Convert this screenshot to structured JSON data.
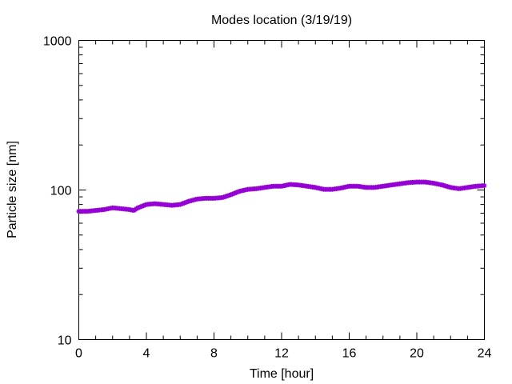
{
  "chart_data": {
    "type": "scatter",
    "title": "Modes location (3/19/19)",
    "xlabel": "Time [hour]",
    "ylabel": "Particle size [nm]",
    "xlim": [
      0,
      24
    ],
    "ylim": [
      10,
      1000
    ],
    "yscale": "log",
    "x_ticks": [
      "0",
      "4",
      "8",
      "12",
      "16",
      "20",
      "24"
    ],
    "y_ticks": [
      "10",
      "100",
      "1000"
    ],
    "grid": false,
    "legend": "none",
    "marker_color": "#9400d3",
    "series": [
      {
        "x": [
          0,
          0.5,
          1,
          1.5,
          2,
          2.5,
          3,
          3.25,
          3.5,
          4,
          4.5,
          5,
          5.5,
          6,
          6.5,
          7,
          7.5,
          8,
          8.5,
          9,
          9.5,
          10,
          10.5,
          11,
          11.5,
          12,
          12.5,
          13,
          13.5,
          14,
          14.5,
          15,
          15.5,
          16,
          16.5,
          17,
          17.5,
          18,
          18.5,
          19,
          19.5,
          20,
          20.5,
          21,
          21.5,
          22,
          22.5,
          23,
          23.5,
          24
        ],
        "y": [
          72,
          72,
          73,
          74,
          76,
          75,
          74,
          73,
          76,
          80,
          81,
          80,
          79,
          80,
          84,
          87,
          88,
          88,
          89,
          93,
          98,
          101,
          102,
          104,
          106,
          106,
          109,
          108,
          106,
          104,
          101,
          101,
          103,
          106,
          106,
          104,
          104,
          106,
          108,
          110,
          112,
          113,
          113,
          111,
          108,
          104,
          102,
          104,
          106,
          107
        ]
      }
    ]
  }
}
